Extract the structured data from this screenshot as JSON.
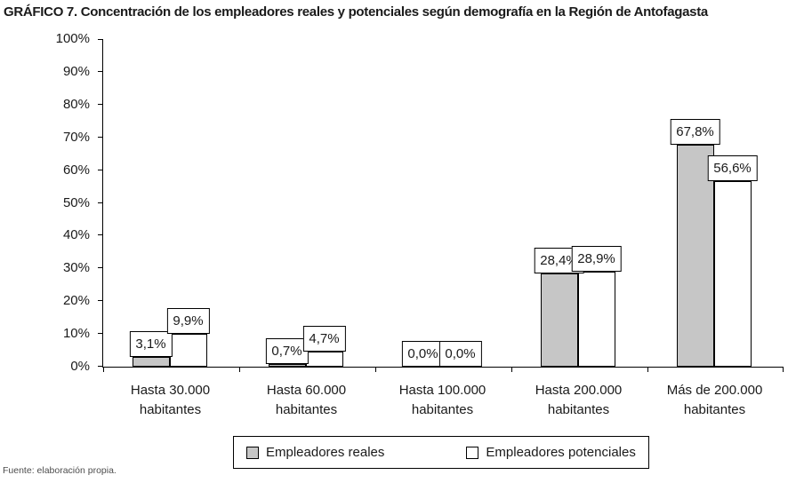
{
  "title": "GRÁFICO 7. Concentración de los empleadores reales y potenciales según demografía en la Región de Antofagasta",
  "source": "Fuente: elaboración propia.",
  "colors": {
    "reales_fill": "#c6c6c6",
    "potenciales_fill": "#ffffff",
    "bar_border": "#000000",
    "text": "#1a1a1a"
  },
  "chart_data": {
    "type": "bar",
    "title": "GRÁFICO 7. Concentración de los empleadores reales y potenciales según demografía en la Región de Antofagasta",
    "categories": [
      "Hasta 30.000 habitantes",
      "Hasta 60.000 habitantes",
      "Hasta 100.000 habitantes",
      "Hasta 200.000 habitantes",
      "Más de 200.000 habitantes"
    ],
    "series": [
      {
        "name": "Empleadores reales",
        "color": "#c6c6c6",
        "values": [
          3.1,
          0.7,
          0.0,
          28.4,
          67.8
        ],
        "labels": [
          "3,1%",
          "0,7%",
          "0,0%",
          "28,4%",
          "67,8%"
        ]
      },
      {
        "name": "Empleadores potenciales",
        "color": "#ffffff",
        "values": [
          9.9,
          4.7,
          0.0,
          28.9,
          56.6
        ],
        "labels": [
          "9,9%",
          "4,7%",
          "0,0%",
          "28,9%",
          "56,6%"
        ]
      }
    ],
    "xlabel": "",
    "ylabel": "",
    "ylim": [
      0,
      100
    ],
    "y_ticks": [
      "0%",
      "10%",
      "20%",
      "30%",
      "40%",
      "50%",
      "60%",
      "70%",
      "80%",
      "90%",
      "100%"
    ],
    "grid": false,
    "legend_position": "bottom",
    "value_labels_boxed": true
  }
}
